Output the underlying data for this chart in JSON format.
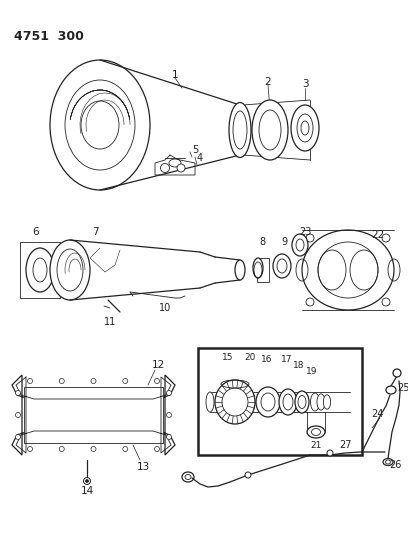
{
  "title_code": "4751  300",
  "background_color": "#ffffff",
  "line_color": "#222222",
  "figsize": [
    4.08,
    5.33
  ],
  "dpi": 100
}
